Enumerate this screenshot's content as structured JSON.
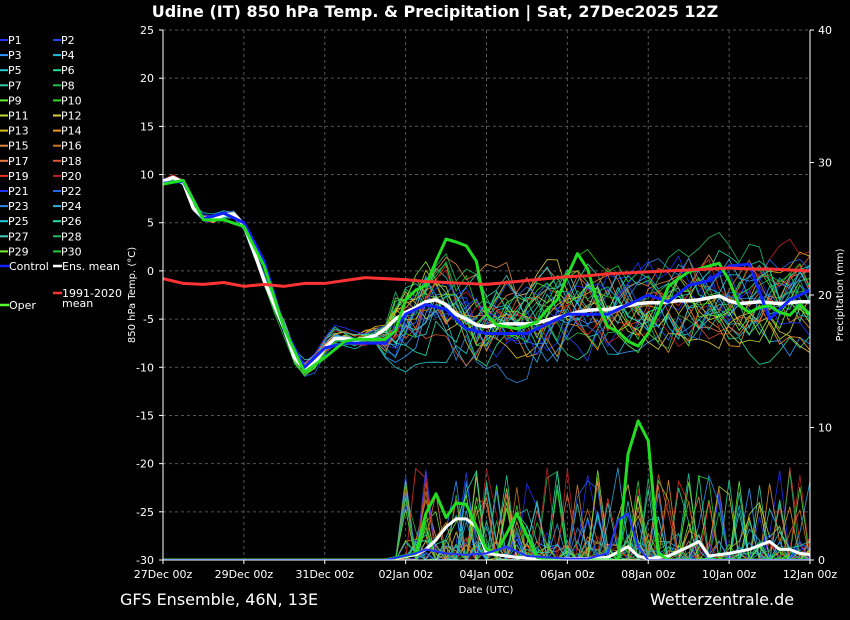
{
  "chart_data": {
    "type": "line",
    "title": "Udine  (IT)  850 hPa Temp. & Precipitation | Sat, 27Dec2025 12Z",
    "ylabel_left": "850 hPa Temp. (°C)",
    "ylabel_right": "Precipitation (mm)",
    "xlabel": "Date (UTC)",
    "ylim_left": [
      -30,
      25
    ],
    "ylim_right": [
      0,
      40
    ],
    "yticks_left": [
      25,
      20,
      15,
      10,
      5,
      0,
      -5,
      -10,
      -15,
      -20,
      -25,
      -30
    ],
    "yticks_right": [
      40,
      30,
      20,
      10,
      0
    ],
    "x_hours_range": [
      0,
      384
    ],
    "xticks": [
      {
        "hour": 0,
        "label": "27Dec 00z"
      },
      {
        "hour": 48,
        "label": "29Dec 00z"
      },
      {
        "hour": 96,
        "label": "31Dec 00z"
      },
      {
        "hour": 144,
        "label": "02Jan 00z"
      },
      {
        "hour": 192,
        "label": "04Jan 00z"
      },
      {
        "hour": 240,
        "label": "06Jan 00z"
      },
      {
        "hour": 288,
        "label": "08Jan 00z"
      },
      {
        "hour": 336,
        "label": "10Jan 00z"
      },
      {
        "hour": 384,
        "label": "12Jan 00z"
      }
    ],
    "grid": true,
    "legend_left": [
      {
        "name": "P1",
        "color": "#2233ff"
      },
      {
        "name": "P2",
        "color": "#2244ee"
      },
      {
        "name": "P3",
        "color": "#3399ff"
      },
      {
        "name": "P4",
        "color": "#22bbdd"
      },
      {
        "name": "P5",
        "color": "#22cccc"
      },
      {
        "name": "P6",
        "color": "#22dd99"
      },
      {
        "name": "P7",
        "color": "#33ccaa"
      },
      {
        "name": "P8",
        "color": "#22bb55"
      },
      {
        "name": "P9",
        "color": "#66ee33"
      },
      {
        "name": "P10",
        "color": "#33dd22"
      },
      {
        "name": "P11",
        "color": "#bbdd33"
      },
      {
        "name": "P12",
        "color": "#ddcc44"
      },
      {
        "name": "P13",
        "color": "#ddbb22"
      },
      {
        "name": "P14",
        "color": "#ee9922"
      },
      {
        "name": "P15",
        "color": "#dd8844"
      },
      {
        "name": "P16",
        "color": "#cc7722"
      },
      {
        "name": "P17",
        "color": "#ee7744"
      },
      {
        "name": "P18",
        "color": "#dd5533"
      },
      {
        "name": "P19",
        "color": "#ee3322"
      },
      {
        "name": "P20",
        "color": "#bb2222"
      },
      {
        "name": "P21",
        "color": "#2233ff"
      },
      {
        "name": "P22",
        "color": "#2266ee"
      },
      {
        "name": "P23",
        "color": "#3388dd"
      },
      {
        "name": "P24",
        "color": "#33aadd"
      },
      {
        "name": "P25",
        "color": "#22ccdd"
      },
      {
        "name": "P26",
        "color": "#22ddaa"
      },
      {
        "name": "P27",
        "color": "#44ccbb"
      },
      {
        "name": "P28",
        "color": "#22bb66"
      },
      {
        "name": "P29",
        "color": "#77ee33"
      },
      {
        "name": "P30",
        "color": "#22cc33"
      }
    ],
    "legend_special": {
      "control": {
        "name": "Control",
        "color": "#1122ff"
      },
      "ens_mean": {
        "name": "Ens. mean",
        "color": "#ffffff"
      },
      "oper": {
        "name": "Oper",
        "color": "#55ff33"
      },
      "clim": {
        "name_line1": "1991-2020",
        "name_line2": "mean",
        "color": "#ff3333"
      }
    },
    "series_temp": [
      {
        "name": "Ens. mean",
        "color": "#ffffff",
        "x": [
          0,
          6,
          12,
          18,
          24,
          30,
          36,
          42,
          48,
          54,
          60,
          66,
          72,
          78,
          84,
          90,
          96,
          102,
          108,
          114,
          120,
          126,
          132,
          138,
          144,
          150,
          156,
          162,
          168,
          174,
          180,
          186,
          192,
          198,
          204,
          210,
          216,
          222,
          228,
          234,
          240,
          246,
          252,
          258,
          264,
          270,
          276,
          282,
          288,
          294,
          300,
          306,
          312,
          318,
          324,
          330,
          336,
          342,
          348,
          354,
          360,
          366,
          372,
          378,
          384
        ],
        "values": [
          9.3,
          9.7,
          9.2,
          6.5,
          5.5,
          5.3,
          5.8,
          5.9,
          4.8,
          2,
          -1,
          -3.5,
          -6,
          -9,
          -10.2,
          -9.5,
          -8,
          -7,
          -7,
          -7.2,
          -7,
          -6.7,
          -6,
          -5,
          -4.3,
          -3.8,
          -3.2,
          -3,
          -3.5,
          -4.5,
          -5,
          -5.6,
          -5.8,
          -5.6,
          -5.5,
          -5.5,
          -5.5,
          -5.4,
          -5.1,
          -4.8,
          -4.6,
          -4.3,
          -4.1,
          -4,
          -4,
          -3.8,
          -3.6,
          -3.4,
          -3.3,
          -3.3,
          -3.2,
          -3.1,
          -3.1,
          -3,
          -2.8,
          -2.6,
          -3.1,
          -3.4,
          -3.3,
          -3.2,
          -3.3,
          -3.4,
          -3.3,
          -3.2,
          -3.2
        ]
      },
      {
        "name": "Control",
        "color": "#1122ff",
        "x": [
          0,
          12,
          24,
          36,
          48,
          60,
          72,
          84,
          96,
          108,
          120,
          132,
          144,
          156,
          168,
          180,
          192,
          204,
          216,
          228,
          240,
          252,
          264,
          276,
          288,
          300,
          312,
          324,
          336,
          348,
          360,
          372,
          384
        ],
        "values": [
          9.1,
          9.3,
          5.4,
          6.0,
          5.0,
          1,
          -6,
          -10,
          -8,
          -7.5,
          -7.5,
          -7.5,
          -4.5,
          -3.5,
          -4,
          -6,
          -6.5,
          -6.5,
          -6.5,
          -5.5,
          -4.5,
          -4.5,
          -4.5,
          -3.5,
          -2.5,
          -3.2,
          -1.5,
          -1,
          0.5,
          0.7,
          -5,
          -3,
          -2
        ]
      },
      {
        "name": "Oper",
        "color": "#22dd22",
        "x": [
          0,
          12,
          24,
          36,
          48,
          60,
          72,
          84,
          96,
          108,
          114,
          120,
          132,
          138,
          144,
          150,
          156,
          162,
          168,
          174,
          180,
          186,
          192,
          198,
          204,
          210,
          216,
          222,
          228,
          234,
          240,
          246,
          252,
          258,
          264,
          270,
          276,
          282,
          288,
          294,
          300,
          306,
          312,
          318,
          324,
          330,
          336,
          342,
          348,
          354,
          360,
          366,
          372,
          378,
          384
        ],
        "values": [
          9.0,
          9.4,
          5.3,
          5.3,
          4.6,
          0.5,
          -6,
          -10.5,
          -9,
          -7.3,
          -7.1,
          -7.1,
          -7.1,
          -6.2,
          -3,
          -2,
          -1.5,
          1,
          3.3,
          3.0,
          2.6,
          1.0,
          -4.5,
          -5.6,
          -5.8,
          -6.0,
          -5.7,
          -5.3,
          -4.0,
          -3.0,
          -0.5,
          1.8,
          0.2,
          -3.4,
          -5.8,
          -6.3,
          -7.3,
          -7.8,
          -6.5,
          -4.2,
          -1.6,
          -0.8,
          -0.1,
          0.2,
          0.5,
          0.8,
          -1.0,
          -3.6,
          -4.3,
          -3.8,
          -3.6,
          -4.3,
          -4.6,
          -3.5,
          -4.5
        ]
      },
      {
        "name": "1991-2020 mean",
        "color": "#ff3333",
        "x": [
          0,
          12,
          24,
          36,
          48,
          60,
          72,
          84,
          96,
          108,
          120,
          132,
          144,
          156,
          168,
          180,
          192,
          204,
          216,
          228,
          240,
          252,
          264,
          276,
          288,
          300,
          312,
          324,
          336,
          348,
          360,
          372,
          384
        ],
        "values": [
          -0.8,
          -1.3,
          -1.4,
          -1.2,
          -1.6,
          -1.4,
          -1.6,
          -1.3,
          -1.3,
          -1.0,
          -0.7,
          -0.8,
          -0.9,
          -1.1,
          -1.2,
          -1.3,
          -1.4,
          -1.2,
          -1.0,
          -0.8,
          -0.6,
          -0.5,
          -0.3,
          -0.2,
          -0.1,
          0,
          0.1,
          0.2,
          0.3,
          0.2,
          0.2,
          0.1,
          0
        ]
      }
    ],
    "series_precip": [
      {
        "name": "Ens. mean",
        "color": "#ffffff",
        "x": [
          0,
          132,
          150,
          156,
          162,
          168,
          174,
          180,
          186,
          192,
          204,
          210,
          228,
          252,
          264,
          276,
          282,
          288,
          300,
          312,
          318,
          324,
          336,
          348,
          360,
          366,
          372,
          378,
          384
        ],
        "values": [
          0,
          0,
          0.4,
          0.8,
          1.5,
          2.5,
          3.1,
          3.1,
          2.5,
          0.5,
          0.3,
          0.2,
          0.1,
          0.1,
          0.2,
          1.0,
          0.3,
          0.1,
          0.3,
          1.0,
          1.4,
          0.3,
          0.5,
          0.8,
          1.4,
          0.8,
          0.8,
          0.5,
          0.4
        ]
      },
      {
        "name": "Oper",
        "color": "#22dd22",
        "x": [
          0,
          132,
          150,
          156,
          162,
          168,
          174,
          180,
          186,
          192,
          198,
          204,
          210,
          222,
          234,
          246,
          258,
          270,
          276,
          282,
          288,
          294,
          300,
          306,
          312,
          384
        ],
        "values": [
          0,
          0,
          0.5,
          3.5,
          5.0,
          3.2,
          4.3,
          4.2,
          2.5,
          0.8,
          0.6,
          2.0,
          3.5,
          0.2,
          0,
          0,
          0,
          0,
          8.0,
          10.5,
          9.0,
          0.5,
          0,
          0,
          0,
          0
        ]
      },
      {
        "name": "Control",
        "color": "#2233ff",
        "x": [
          0,
          132,
          150,
          156,
          168,
          180,
          192,
          204,
          216,
          228,
          240,
          252,
          264,
          270,
          276,
          282,
          288,
          300,
          384
        ],
        "values": [
          0,
          0,
          0.5,
          0.8,
          0.5,
          0.4,
          0.5,
          1.0,
          0.3,
          0.2,
          0.1,
          0.1,
          0.5,
          3.0,
          3.5,
          1.0,
          0,
          0,
          0
        ]
      }
    ]
  },
  "footer": {
    "left": "GFS Ensemble, 46N, 13E",
    "right": "Wetterzentrale.de"
  }
}
